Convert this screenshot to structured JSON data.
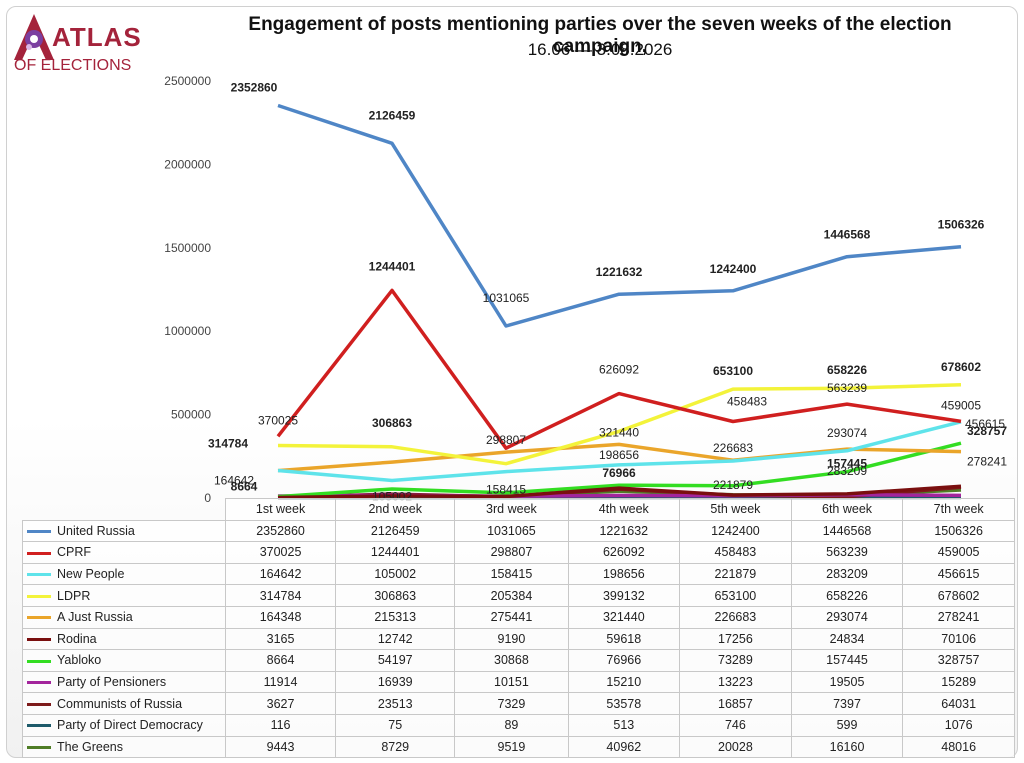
{
  "logo": {
    "brand": "ATLAS",
    "sub": "OF ELECTIONS"
  },
  "chart_data": {
    "type": "line",
    "title": "Engagement of posts mentioning parties over the seven weeks of the election campaign,",
    "subtitle": "16.06 — 3.08.2026",
    "categories": [
      "1st week",
      "2nd week",
      "3rd week",
      "4th week",
      "5th week",
      "6th week",
      "7th week"
    ],
    "y_ticks": [
      "0",
      "500000",
      "1000000",
      "1500000",
      "2000000",
      "2500000"
    ],
    "ylim": [
      0,
      2500000
    ],
    "grid": false,
    "legend": "table-below",
    "series": [
      {
        "name": "United Russia",
        "color": "#4f86c6",
        "values": [
          2352860,
          2126459,
          1031065,
          1221632,
          1242400,
          1446568,
          1506326
        ]
      },
      {
        "name": "CPRF",
        "color": "#d01f1f",
        "values": [
          370025,
          1244401,
          298807,
          626092,
          458483,
          563239,
          459005
        ]
      },
      {
        "name": "New People",
        "color": "#5ee3ea",
        "values": [
          164642,
          105002,
          158415,
          198656,
          221879,
          283209,
          456615
        ]
      },
      {
        "name": "LDPR",
        "color": "#f3f33a",
        "values": [
          314784,
          306863,
          205384,
          399132,
          653100,
          658226,
          678602
        ]
      },
      {
        "name": "A Just Russia",
        "color": "#eaa52a",
        "values": [
          164348,
          215313,
          275441,
          321440,
          226683,
          293074,
          278241
        ]
      },
      {
        "name": "Rodina",
        "color": "#7a0f0f",
        "values": [
          3165,
          12742,
          9190,
          59618,
          17256,
          24834,
          70106
        ]
      },
      {
        "name": "Yabloko",
        "color": "#33dd22",
        "values": [
          8664,
          54197,
          30868,
          76966,
          73289,
          157445,
          328757
        ]
      },
      {
        "name": "Party of Pensioners",
        "color": "#a3259c",
        "values": [
          11914,
          16939,
          10151,
          15210,
          13223,
          19505,
          15289
        ]
      },
      {
        "name": "Communists of Russia",
        "color": "#7d1a1a",
        "values": [
          3627,
          23513,
          7329,
          53578,
          16857,
          7397,
          64031
        ]
      },
      {
        "name": "Party of Direct Democracy",
        "color": "#1d5a6a",
        "values": [
          116,
          75,
          89,
          513,
          746,
          599,
          1076
        ]
      },
      {
        "name": "The Greens",
        "color": "#4f7d26",
        "values": [
          9443,
          8729,
          9519,
          40962,
          20028,
          16160,
          48016
        ]
      }
    ],
    "data_labels": [
      {
        "text": "2352860",
        "series": "United Russia",
        "week": 1,
        "bold": true
      },
      {
        "text": "2126459",
        "series": "United Russia",
        "week": 2,
        "bold": true
      },
      {
        "text": "1031065",
        "series": "United Russia",
        "week": 3,
        "bold": false
      },
      {
        "text": "1221632",
        "series": "United Russia",
        "week": 4,
        "bold": true
      },
      {
        "text": "1242400",
        "series": "United Russia",
        "week": 5,
        "bold": true
      },
      {
        "text": "1446568",
        "series": "United Russia",
        "week": 6,
        "bold": true
      },
      {
        "text": "1506326",
        "series": "United Russia",
        "week": 7,
        "bold": true
      },
      {
        "text": "1244401",
        "series": "CPRF",
        "week": 2,
        "bold": true
      },
      {
        "text": "370025",
        "series": "CPRF",
        "week": 1,
        "bold": false
      },
      {
        "text": "298807",
        "series": "CPRF",
        "week": 3,
        "bold": false
      },
      {
        "text": "626092",
        "series": "CPRF",
        "week": 4,
        "bold": false
      },
      {
        "text": "458483",
        "series": "CPRF",
        "week": 5,
        "bold": false
      },
      {
        "text": "563239",
        "series": "CPRF",
        "week": 6,
        "bold": false
      },
      {
        "text": "459005",
        "series": "CPRF",
        "week": 7,
        "bold": false
      },
      {
        "text": "653100",
        "series": "LDPR",
        "week": 5,
        "bold": true
      },
      {
        "text": "658226",
        "series": "LDPR",
        "week": 6,
        "bold": true
      },
      {
        "text": "678602",
        "series": "LDPR",
        "week": 7,
        "bold": true
      },
      {
        "text": "314784",
        "series": "LDPR",
        "week": 1,
        "bold": true
      },
      {
        "text": "306863",
        "series": "LDPR",
        "week": 2,
        "bold": true
      },
      {
        "text": "321440",
        "series": "A Just Russia",
        "week": 4,
        "bold": false
      },
      {
        "text": "226683",
        "series": "A Just Russia",
        "week": 5,
        "bold": false
      },
      {
        "text": "293074",
        "series": "A Just Russia",
        "week": 6,
        "bold": false
      },
      {
        "text": "278241",
        "series": "A Just Russia",
        "week": 7,
        "bold": false
      },
      {
        "text": "164642",
        "series": "New People",
        "week": 1,
        "bold": false
      },
      {
        "text": "105002",
        "series": "New People",
        "week": 2,
        "bold": false
      },
      {
        "text": "158415",
        "series": "New People",
        "week": 3,
        "bold": false
      },
      {
        "text": "198656",
        "series": "New People",
        "week": 4,
        "bold": false
      },
      {
        "text": "221879",
        "series": "New People",
        "week": 5,
        "bold": false
      },
      {
        "text": "283209",
        "series": "New People",
        "week": 6,
        "bold": false
      },
      {
        "text": "456615",
        "series": "New People",
        "week": 7,
        "bold": false
      },
      {
        "text": "8664",
        "series": "Yabloko",
        "week": 1,
        "bold": true
      },
      {
        "text": "76966",
        "series": "Yabloko",
        "week": 4,
        "bold": true
      },
      {
        "text": "157445",
        "series": "Yabloko",
        "week": 6,
        "bold": true
      },
      {
        "text": "328757",
        "series": "Yabloko",
        "week": 7,
        "bold": true
      }
    ]
  }
}
